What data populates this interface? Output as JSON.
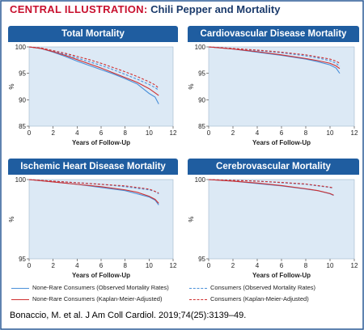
{
  "header": {
    "label": "CENTRAL ILLUSTRATION:",
    "title": "Chili Pepper and Mortality"
  },
  "colors": {
    "header_red": "#c8102e",
    "title_blue": "#1a3a6b",
    "panel_title_bg": "#1f5da0",
    "plot_bg": "#dce9f5",
    "border": "#2a5a95",
    "none_rare": "#4a90d9",
    "consumers": "#d03030"
  },
  "legend": [
    {
      "label": "None-Rare Consumers (Observed Mortality Rates)",
      "color": "#4a90d9",
      "dash": false
    },
    {
      "label": "Consumers (Observed Mortality Rates)",
      "color": "#4a90d9",
      "dash": true
    },
    {
      "label": "None-Rare Consumers (Kaplan-Meier-Adjusted)",
      "color": "#d03030",
      "dash": false
    },
    {
      "label": "Consumers (Kaplan-Meier-Adjusted)",
      "color": "#d03030",
      "dash": true
    }
  ],
  "citation": "Bonaccio, M. et al. J Am Coll Cardiol. 2019;74(25):3139–49.",
  "chart_data": [
    {
      "type": "line",
      "title": "Total Mortality",
      "xlabel": "Years of Follow-Up",
      "ylabel": "%",
      "xlim": [
        0,
        12
      ],
      "ylim": [
        85,
        100
      ],
      "xticks": [
        0,
        2,
        4,
        6,
        8,
        10,
        12
      ],
      "yticks": [
        85,
        90,
        95,
        100
      ],
      "grid": false,
      "series": [
        {
          "name": "None-Rare Consumers (Observed Mortality Rates)",
          "x": [
            0,
            1,
            2,
            3,
            4,
            5,
            6,
            7,
            8,
            9,
            10,
            10.5,
            10.8
          ],
          "values": [
            100,
            99.7,
            99.0,
            98.2,
            97.3,
            96.5,
            95.7,
            94.9,
            94.0,
            93.0,
            91.2,
            90.5,
            89.2
          ]
        },
        {
          "name": "Consumers (Observed Mortality Rates)",
          "x": [
            0,
            1,
            2,
            3,
            4,
            5,
            6,
            7,
            8,
            9,
            10,
            10.5,
            10.8
          ],
          "values": [
            100,
            99.7,
            99.2,
            98.6,
            97.9,
            97.2,
            96.5,
            95.7,
            94.8,
            93.9,
            92.9,
            92.3,
            91.8
          ]
        },
        {
          "name": "None-Rare Consumers (Kaplan-Meier-Adjusted)",
          "x": [
            0,
            1,
            2,
            3,
            4,
            5,
            6,
            7,
            8,
            9,
            10,
            10.5,
            10.8
          ],
          "values": [
            100,
            99.7,
            99.1,
            98.4,
            97.6,
            96.8,
            96.0,
            95.1,
            94.2,
            93.3,
            92.1,
            91.3,
            90.8
          ]
        },
        {
          "name": "Consumers (Kaplan-Meier-Adjusted)",
          "x": [
            0,
            1,
            2,
            3,
            4,
            5,
            6,
            7,
            8,
            9,
            10,
            10.5,
            10.8
          ],
          "values": [
            100,
            99.8,
            99.3,
            98.8,
            98.2,
            97.6,
            96.9,
            96.1,
            95.3,
            94.4,
            93.4,
            92.8,
            92.2
          ]
        }
      ]
    },
    {
      "type": "line",
      "title": "Cardiovascular Disease Mortality",
      "xlabel": "Years of Follow-Up",
      "ylabel": "%",
      "xlim": [
        0,
        12
      ],
      "ylim": [
        85,
        100
      ],
      "xticks": [
        0,
        2,
        4,
        6,
        8,
        10,
        12
      ],
      "yticks": [
        85,
        90,
        95,
        100
      ],
      "grid": false,
      "series": [
        {
          "name": "None-Rare Consumers (Observed Mortality Rates)",
          "x": [
            0,
            2,
            4,
            6,
            8,
            9,
            10,
            10.5,
            10.8
          ],
          "values": [
            100,
            99.6,
            99.0,
            98.4,
            97.7,
            97.2,
            96.6,
            96.0,
            95.0
          ]
        },
        {
          "name": "Consumers (Observed Mortality Rates)",
          "x": [
            0,
            2,
            4,
            6,
            8,
            9,
            10,
            10.5,
            10.8
          ],
          "values": [
            100,
            99.7,
            99.3,
            98.9,
            98.3,
            97.9,
            97.4,
            96.9,
            96.3
          ]
        },
        {
          "name": "None-Rare Consumers (Kaplan-Meier-Adjusted)",
          "x": [
            0,
            2,
            4,
            6,
            8,
            9,
            10,
            10.5,
            10.8
          ],
          "values": [
            100,
            99.6,
            99.1,
            98.5,
            97.8,
            97.4,
            96.9,
            96.4,
            95.9
          ]
        },
        {
          "name": "Consumers (Kaplan-Meier-Adjusted)",
          "x": [
            0,
            2,
            4,
            6,
            8,
            9,
            10,
            10.5,
            10.8
          ],
          "values": [
            100,
            99.7,
            99.4,
            99.0,
            98.5,
            98.1,
            97.7,
            97.3,
            96.9
          ]
        }
      ]
    },
    {
      "type": "line",
      "title": "Ischemic Heart Disease Mortality",
      "xlabel": "Years of Follow-Up",
      "ylabel": "%",
      "xlim": [
        0,
        12
      ],
      "ylim": [
        95,
        100
      ],
      "xticks": [
        0,
        2,
        4,
        6,
        8,
        10,
        12
      ],
      "yticks": [
        95,
        100
      ],
      "grid": false,
      "series": [
        {
          "name": "None-Rare Consumers (Observed Mortality Rates)",
          "x": [
            0,
            2,
            4,
            6,
            8,
            9,
            10,
            10.5,
            10.8
          ],
          "values": [
            100,
            99.85,
            99.7,
            99.5,
            99.3,
            99.1,
            98.9,
            98.7,
            98.4
          ]
        },
        {
          "name": "Consumers (Observed Mortality Rates)",
          "x": [
            0,
            2,
            4,
            6,
            8,
            9,
            10,
            10.5,
            10.8
          ],
          "values": [
            100,
            99.9,
            99.8,
            99.7,
            99.55,
            99.45,
            99.35,
            99.25,
            99.1
          ]
        },
        {
          "name": "None-Rare Consumers (Kaplan-Meier-Adjusted)",
          "x": [
            0,
            2,
            4,
            6,
            8,
            9,
            10,
            10.5,
            10.8
          ],
          "values": [
            100,
            99.85,
            99.7,
            99.55,
            99.35,
            99.2,
            98.95,
            98.75,
            98.5
          ]
        },
        {
          "name": "Consumers (Kaplan-Meier-Adjusted)",
          "x": [
            0,
            2,
            4,
            6,
            8,
            9,
            10,
            10.5,
            10.8
          ],
          "values": [
            100,
            99.9,
            99.8,
            99.7,
            99.6,
            99.5,
            99.4,
            99.25,
            99.15
          ]
        }
      ]
    },
    {
      "type": "line",
      "title": "Cerebrovascular Mortality",
      "xlabel": "Years of Follow-Up",
      "ylabel": "%",
      "xlim": [
        0,
        12
      ],
      "ylim": [
        95,
        100
      ],
      "xticks": [
        0,
        2,
        4,
        6,
        8,
        10,
        12
      ],
      "yticks": [
        95,
        100
      ],
      "grid": false,
      "series": [
        {
          "name": "None-Rare Consumers (Observed Mortality Rates)",
          "x": [
            0,
            2,
            4,
            6,
            8,
            9,
            10,
            10.3
          ],
          "values": [
            100,
            99.9,
            99.75,
            99.6,
            99.4,
            99.3,
            99.1,
            99.0
          ]
        },
        {
          "name": "Consumers (Observed Mortality Rates)",
          "x": [
            0,
            2,
            4,
            6,
            8,
            9,
            10,
            10.3
          ],
          "values": [
            100,
            99.95,
            99.9,
            99.8,
            99.7,
            99.6,
            99.5,
            99.45
          ]
        },
        {
          "name": "None-Rare Consumers (Kaplan-Meier-Adjusted)",
          "x": [
            0,
            2,
            4,
            6,
            8,
            9,
            10,
            10.3
          ],
          "values": [
            100,
            99.9,
            99.78,
            99.62,
            99.42,
            99.3,
            99.12,
            99.02
          ]
        },
        {
          "name": "Consumers (Kaplan-Meier-Adjusted)",
          "x": [
            0,
            2,
            4,
            6,
            8,
            9,
            10,
            10.3
          ],
          "values": [
            100,
            99.95,
            99.9,
            99.82,
            99.72,
            99.62,
            99.52,
            99.47
          ]
        }
      ]
    }
  ]
}
